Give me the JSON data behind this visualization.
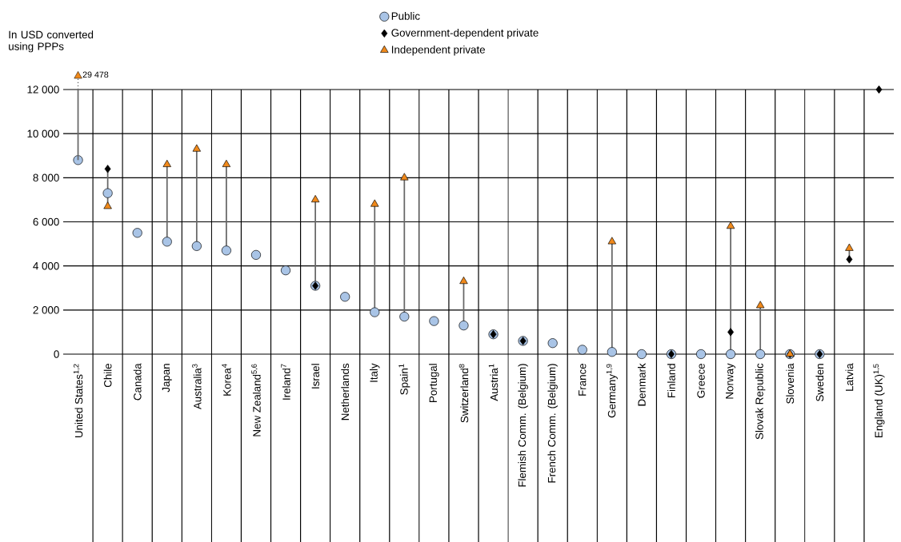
{
  "chart_data": {
    "type": "scatter",
    "ylabel": "In USD converted using PPPs",
    "categories": [
      "United States$^{1,2}$",
      "Chile",
      "Canada",
      "Japan",
      "Australia$^{3}$",
      "Korea$^{4}$",
      "New Zealand$^{5,6}$",
      "Ireland$^{7}$",
      "Israel",
      "Netherlands",
      "Italy",
      "Spain$^{1}$",
      "Portugal",
      "Switzerland$^{8}$",
      "Austria$^{1}$",
      "Flemish Comm. (Belgium)",
      "French Comm. (Belgium)",
      "France",
      "Germany$^{1,9}$",
      "Denmark",
      "Finland",
      "Greece",
      "Norway",
      "Slovak Republic",
      "Slovenia",
      "Sweden",
      "Latvia",
      "England (UK)$^{1,5}$"
    ],
    "series": [
      {
        "name": "Public",
        "color": "#a9c4e6",
        "marker": "circle",
        "values": [
          8800,
          7300,
          5500,
          5100,
          4900,
          4700,
          4500,
          3800,
          3100,
          2600,
          1900,
          1700,
          1500,
          1300,
          900,
          600,
          500,
          200,
          100,
          0,
          0,
          0,
          0,
          0,
          0,
          0,
          null,
          null
        ]
      },
      {
        "name": "Government-dependent private",
        "color": "#000000",
        "marker": "diamond",
        "values": [
          null,
          8400,
          null,
          null,
          null,
          null,
          null,
          null,
          3100,
          null,
          null,
          null,
          null,
          null,
          900,
          600,
          null,
          null,
          null,
          null,
          0,
          null,
          1000,
          null,
          0,
          0,
          4300,
          12000
        ]
      },
      {
        "name": "Independent private",
        "color": "#f0891b",
        "marker": "triangle",
        "values": [
          null,
          6700,
          null,
          8600,
          9300,
          8600,
          null,
          null,
          7000,
          null,
          6800,
          8000,
          null,
          3300,
          null,
          null,
          null,
          null,
          5100,
          null,
          null,
          null,
          5800,
          2200,
          0,
          null,
          4800,
          null
        ]
      }
    ],
    "annotations": [
      "29 478"
    ],
    "ylim": [
      0,
      12000
    ],
    "yticks": [
      {
        "value": 0,
        "label": "0"
      },
      {
        "value": 2000,
        "label": "2 000"
      },
      {
        "value": 4000,
        "label": "4 000"
      },
      {
        "value": 6000,
        "label": "6 000"
      },
      {
        "value": 8000,
        "label": "8 000"
      },
      {
        "value": 10000,
        "label": "10 000"
      },
      {
        "value": 12000,
        "label": "12 000"
      }
    ],
    "grid": true,
    "legend": "top"
  }
}
